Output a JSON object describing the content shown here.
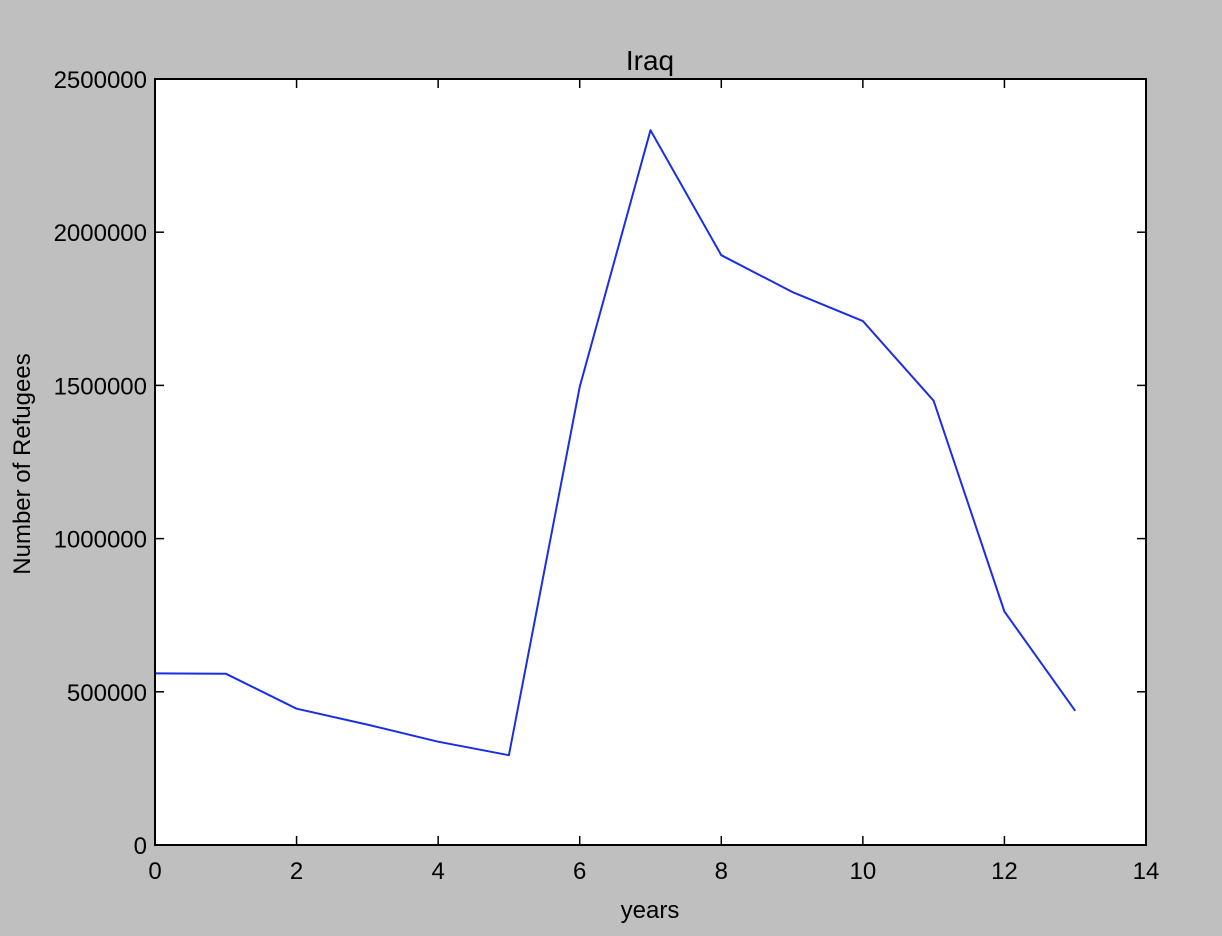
{
  "colors": {
    "background": "#bfbfbf",
    "plot_background": "#ffffff",
    "axis": "#000000",
    "series": "#1a2ee6"
  },
  "chart_data": {
    "type": "line",
    "title": "Iraq",
    "xlabel": "years",
    "ylabel": "Number of Refugees",
    "xlim": [
      0,
      14
    ],
    "ylim": [
      0,
      2500000
    ],
    "xticks": [
      0,
      2,
      4,
      6,
      8,
      10,
      12,
      14
    ],
    "xtick_labels": [
      "0",
      "2",
      "4",
      "6",
      "8",
      "10",
      "12",
      "14"
    ],
    "yticks": [
      0,
      500000,
      1000000,
      1500000,
      2000000,
      2500000
    ],
    "ytick_labels": [
      "0",
      "500000",
      "1000000",
      "1500000",
      "2000000",
      "2500000"
    ],
    "grid": false,
    "legend": "none",
    "series": [
      {
        "x": [
          0,
          1,
          2,
          3,
          4,
          5,
          6,
          7,
          8,
          9,
          10,
          11,
          12,
          13
        ],
        "y": [
          560000,
          559000,
          445000,
          393000,
          337000,
          293000,
          1495000,
          2333000,
          1925000,
          1805000,
          1710000,
          1450000,
          762000,
          438000
        ]
      }
    ]
  }
}
